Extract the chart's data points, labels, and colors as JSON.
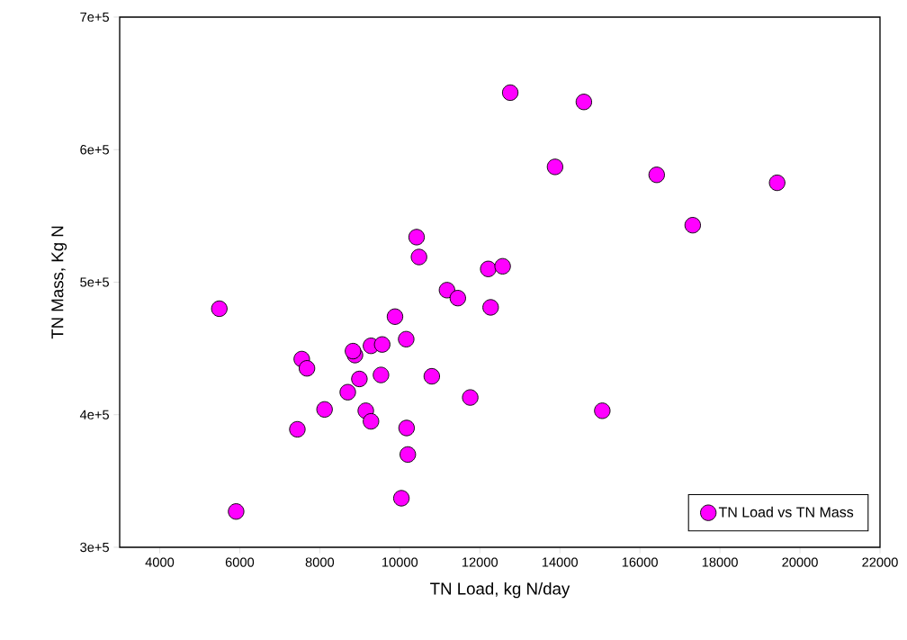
{
  "chart_data": {
    "type": "scatter",
    "xlabel": "TN Load, kg N/day",
    "ylabel": "TN Mass, Kg N",
    "xlim": [
      3000,
      22000
    ],
    "xticks": [
      4000,
      6000,
      8000,
      10000,
      12000,
      14000,
      16000,
      18000,
      20000,
      22000
    ],
    "ylim": [
      300000,
      700000
    ],
    "yticks": [
      {
        "value": 300000,
        "label": "3e+5"
      },
      {
        "value": 400000,
        "label": "4e+5"
      },
      {
        "value": 500000,
        "label": "5e+5"
      },
      {
        "value": 600000,
        "label": "6e+5"
      },
      {
        "value": 700000,
        "label": "7e+5"
      }
    ],
    "legend": "bottom right",
    "marker": "circle",
    "grid": false,
    "series": [
      {
        "name": "TN Load vs TN Mass",
        "color": "#ff00ff",
        "x": [
          5490,
          5910,
          7440,
          7550,
          7680,
          8120,
          8700,
          8880,
          8830,
          8990,
          9150,
          9280,
          9280,
          9560,
          9530,
          9880,
          10040,
          10160,
          10170,
          10200,
          10420,
          10480,
          10800,
          11180,
          11450,
          11760,
          12210,
          12270,
          12570,
          12760,
          13880,
          14600,
          15060,
          16420,
          17320,
          19430
        ],
        "values": [
          480000,
          327000,
          389000,
          442000,
          435000,
          404000,
          417000,
          445000,
          448000,
          427000,
          403000,
          395000,
          452000,
          453000,
          430000,
          474000,
          337000,
          457000,
          390000,
          370000,
          534000,
          519000,
          429000,
          494000,
          488000,
          413000,
          510000,
          481000,
          512000,
          643000,
          587000,
          636000,
          403000,
          581000,
          543000,
          575000
        ]
      }
    ]
  }
}
